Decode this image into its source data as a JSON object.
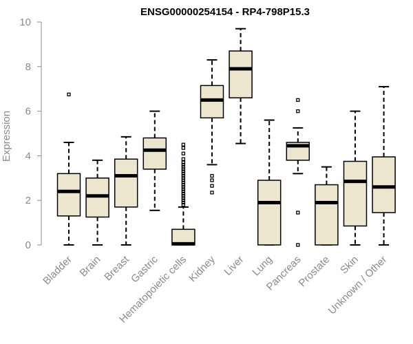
{
  "chart_data": {
    "type": "boxplot",
    "title": "ENSG00000254154 - RP4-798P15.3",
    "ylabel": "Expression",
    "xlabel": "",
    "ylim": [
      0,
      10
    ],
    "yticks": [
      0,
      2,
      4,
      6,
      8,
      10
    ],
    "categories": [
      "Bladder",
      "Brain",
      "Breast",
      "Gastric",
      "Hematopoietic cells",
      "Kidney",
      "Liver",
      "Lung",
      "Pancreas",
      "Prostate",
      "Skin",
      "Unknown / Other"
    ],
    "boxes": [
      {
        "name": "Bladder",
        "min": 0,
        "q1": 1.3,
        "median": 2.4,
        "q3": 3.2,
        "max": 4.6,
        "outliers": [
          6.75
        ]
      },
      {
        "name": "Brain",
        "min": 0,
        "q1": 1.25,
        "median": 2.2,
        "q3": 3.0,
        "max": 3.8,
        "outliers": []
      },
      {
        "name": "Breast",
        "min": 0,
        "q1": 1.7,
        "median": 3.1,
        "q3": 3.85,
        "max": 4.85,
        "outliers": []
      },
      {
        "name": "Gastric",
        "min": 1.55,
        "q1": 3.4,
        "median": 4.25,
        "q3": 4.8,
        "max": 6.0,
        "outliers": []
      },
      {
        "name": "Hematopoietic cells",
        "min": 0,
        "q1": 0,
        "median": 0.05,
        "q3": 0.7,
        "max": 1.7,
        "outliers": [
          1.8,
          1.9,
          2.0,
          2.1,
          2.2,
          2.3,
          2.4,
          2.5,
          2.6,
          2.7,
          2.8,
          2.9,
          3.0,
          3.1,
          3.2,
          3.3,
          3.4,
          3.5,
          3.6,
          3.7,
          3.85,
          4.1,
          4.35,
          4.5
        ]
      },
      {
        "name": "Kidney",
        "min": 3.6,
        "q1": 5.7,
        "median": 6.5,
        "q3": 7.15,
        "max": 8.3,
        "outliers": [
          3.1,
          2.9,
          2.65,
          2.35
        ]
      },
      {
        "name": "Liver",
        "min": 4.55,
        "q1": 6.6,
        "median": 7.9,
        "q3": 8.7,
        "max": 9.7,
        "outliers": []
      },
      {
        "name": "Lung",
        "min": 0,
        "q1": 0,
        "median": 1.9,
        "q3": 2.9,
        "max": 5.6,
        "outliers": []
      },
      {
        "name": "Pancreas",
        "min": 3.2,
        "q1": 3.8,
        "median": 4.45,
        "q3": 4.6,
        "max": 5.25,
        "outliers": [
          6.5,
          6.0,
          1.45,
          0
        ]
      },
      {
        "name": "Prostate",
        "min": 0,
        "q1": 0,
        "median": 1.9,
        "q3": 2.7,
        "max": 3.5,
        "outliers": []
      },
      {
        "name": "Skin",
        "min": 0,
        "q1": 0.85,
        "median": 2.85,
        "q3": 3.75,
        "max": 6.0,
        "outliers": []
      },
      {
        "name": "Unknown / Other",
        "min": 0,
        "q1": 1.45,
        "median": 2.6,
        "q3": 3.95,
        "max": 7.1,
        "outliers": []
      }
    ],
    "colors": {
      "box_fill": "#ede6cf",
      "line": "#000000",
      "axis": "#8a8a8a"
    }
  }
}
